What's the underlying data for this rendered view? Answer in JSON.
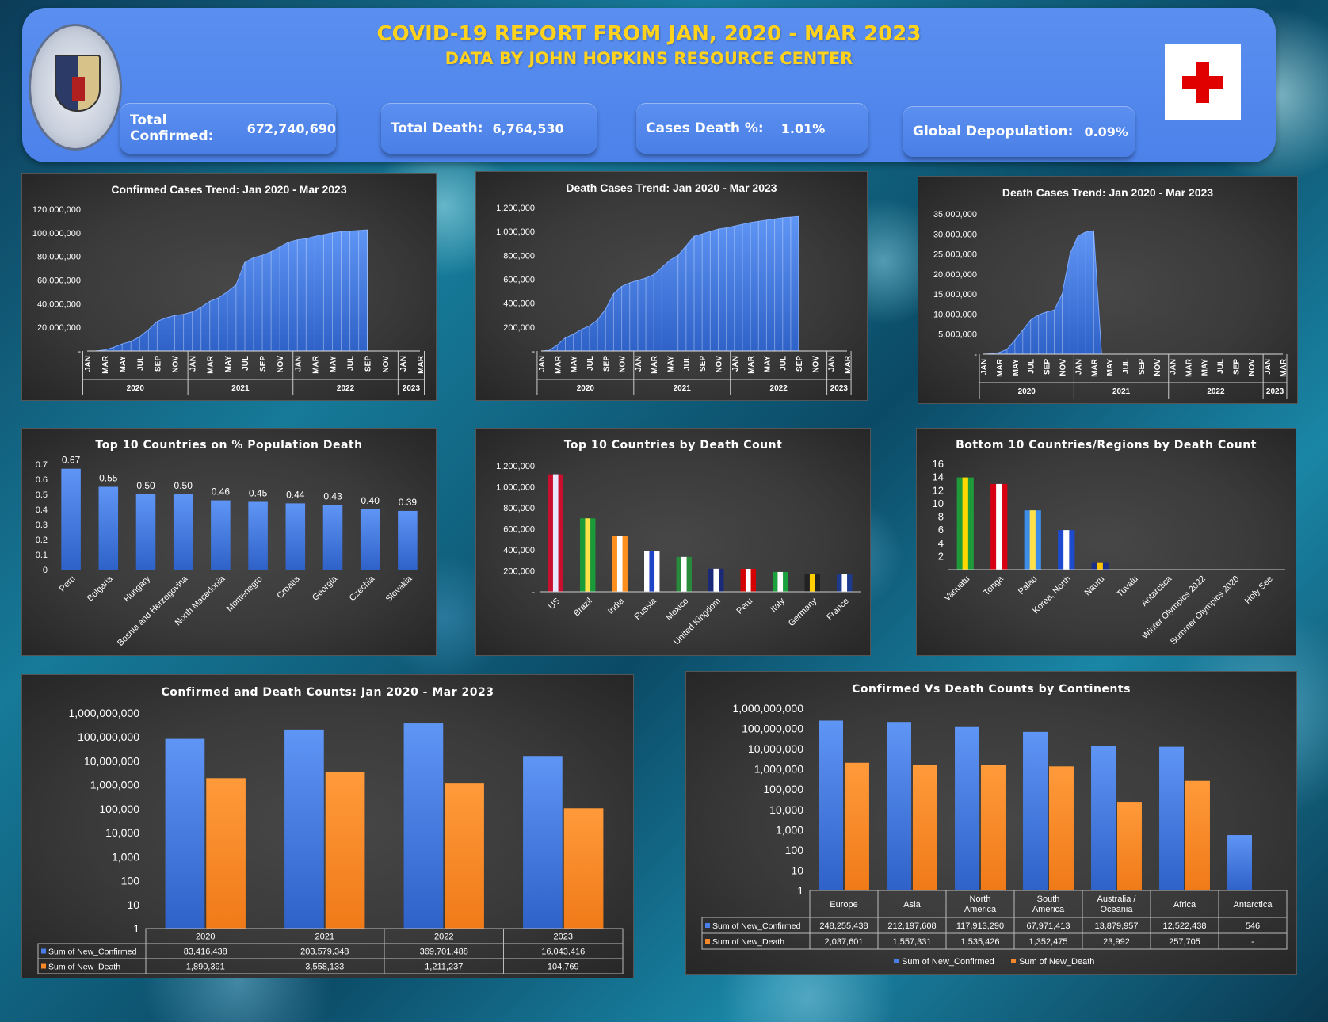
{
  "header": {
    "title": "COVID-19 REPORT FROM JAN, 2020 - MAR 2023",
    "subtitle": "DATA BY JOHN HOPKINS RESOURCE CENTER",
    "seal_text": "THE JOHNS HOPKINS UNIVERSITY BALTIMORE 1876"
  },
  "kpis": [
    {
      "label": "Total Confirmed:",
      "value": "672,740,690"
    },
    {
      "label": "Total Death:",
      "value": "6,764,530"
    },
    {
      "label": "Cases Death %:",
      "value": "1.01%"
    },
    {
      "label": "Global Depopulation:",
      "value": "0.09%"
    }
  ],
  "colors": {
    "blue": "#4a7ee8",
    "orange": "#f5892a",
    "header": "#5088ee",
    "gold": "#ffd21e"
  },
  "chart_data": [
    {
      "id": "confirmed_trend",
      "type": "area",
      "title": "Confirmed Cases Trend: Jan 2020 - Mar 2023",
      "ylim": [
        0,
        120000000
      ],
      "yticks": [
        "-",
        "20,000,000",
        "40,000,000",
        "60,000,000",
        "80,000,000",
        "100,000,000",
        "120,000,000"
      ],
      "month_labels": [
        "JAN",
        "MAR",
        "MAY",
        "JUL",
        "SEP",
        "NOV",
        "JAN",
        "MAR",
        "MAY",
        "JUL",
        "SEP",
        "NOV",
        "JAN",
        "MAR",
        "MAY",
        "JUL",
        "SEP",
        "NOV",
        "JAN",
        "MAR"
      ],
      "years": [
        "2020",
        "2021",
        "2022",
        "2023"
      ],
      "values": [
        0,
        100000,
        800000,
        3000000,
        6000000,
        8000000,
        12000000,
        18000000,
        25000000,
        28000000,
        30000000,
        31000000,
        33000000,
        37000000,
        42000000,
        45000000,
        50000000,
        56000000,
        75000000,
        79000000,
        81000000,
        84000000,
        88000000,
        92000000,
        94000000,
        95000000,
        97000000,
        98500000,
        100000000,
        101000000,
        101500000,
        102000000,
        102500000
      ]
    },
    {
      "id": "death_trend",
      "type": "area",
      "title": "Death Cases Trend: Jan 2020 - Mar 2023",
      "ylim": [
        0,
        1200000
      ],
      "yticks": [
        "-",
        "200,000",
        "400,000",
        "600,000",
        "800,000",
        "1,000,000",
        "1,200,000"
      ],
      "month_labels": [
        "JAN",
        "MAR",
        "MAY",
        "JUL",
        "SEP",
        "NOV",
        "JAN",
        "MAR",
        "MAY",
        "JUL",
        "SEP",
        "NOV",
        "JAN",
        "MAR",
        "MAY",
        "JUL",
        "SEP",
        "NOV",
        "JAN",
        "MAR"
      ],
      "years": [
        "2020",
        "2021",
        "2022",
        "2023"
      ],
      "values": [
        0,
        5000,
        50000,
        110000,
        140000,
        180000,
        210000,
        260000,
        350000,
        480000,
        540000,
        570000,
        590000,
        610000,
        640000,
        700000,
        760000,
        800000,
        880000,
        960000,
        980000,
        1000000,
        1020000,
        1030000,
        1045000,
        1060000,
        1075000,
        1085000,
        1095000,
        1105000,
        1115000,
        1120000,
        1125000
      ]
    },
    {
      "id": "death_trend_2",
      "type": "area",
      "title": "Death Cases Trend: Jan 2020 - Mar 2023",
      "ylim": [
        0,
        35000000
      ],
      "yticks": [
        "-",
        "5,000,000",
        "10,000,000",
        "15,000,000",
        "20,000,000",
        "25,000,000",
        "30,000,000",
        "35,000,000"
      ],
      "month_labels": [
        "JAN",
        "MAR",
        "MAY",
        "JUL",
        "SEP",
        "NOV",
        "JAN",
        "MAR",
        "MAY",
        "JUL",
        "SEP",
        "NOV",
        "JAN",
        "MAR",
        "MAY",
        "JUL",
        "SEP",
        "NOV",
        "JAN",
        "MAR"
      ],
      "years": [
        "2020",
        "2021",
        "2022",
        "2023"
      ],
      "values": [
        0,
        100000,
        400000,
        1200000,
        3500000,
        6000000,
        8500000,
        9800000,
        10500000,
        11000000,
        15000000,
        25000000,
        29500000,
        30500000,
        30800000,
        0
      ]
    },
    {
      "id": "pct_population_death",
      "type": "bar",
      "title": "Top 10 Countries on % Population Death",
      "ylim": [
        0,
        0.7
      ],
      "yticks": [
        "0",
        "0.1",
        "0.2",
        "0.3",
        "0.4",
        "0.5",
        "0.6",
        "0.7"
      ],
      "categories": [
        "Peru",
        "Bulgaria",
        "Hungary",
        "Bosnia and Herzegovina",
        "North Macedonia",
        "Montenegro",
        "Croatia",
        "Georgia",
        "Czechia",
        "Slovakia"
      ],
      "values": [
        0.67,
        0.55,
        0.5,
        0.5,
        0.46,
        0.45,
        0.44,
        0.43,
        0.4,
        0.39
      ],
      "labels": [
        "0.67",
        "0.55",
        "0.50",
        "0.50",
        "0.46",
        "0.45",
        "0.44",
        "0.43",
        "0.40",
        "0.39"
      ]
    },
    {
      "id": "top10_death",
      "type": "bar",
      "title": "Top 10 Countries by Death Count",
      "ylim": [
        0,
        1200000
      ],
      "yticks": [
        "-",
        "200,000",
        "400,000",
        "600,000",
        "800,000",
        "1,000,000",
        "1,200,000"
      ],
      "categories": [
        "US",
        "Brazil",
        "India",
        "Russia",
        "Mexico",
        "United Kingdom",
        "Peru",
        "Italy",
        "Germany",
        "France"
      ],
      "values": [
        1120000,
        700000,
        531000,
        388000,
        333000,
        220000,
        219000,
        189000,
        168000,
        166000
      ]
    },
    {
      "id": "bottom10_death",
      "type": "bar",
      "title": "Bottom 10 Countries/Regions by Death Count",
      "ylim": [
        0,
        16
      ],
      "yticks": [
        "-",
        "2",
        "4",
        "6",
        "8",
        "10",
        "12",
        "14",
        "16"
      ],
      "categories": [
        "Vanuatu",
        "Tonga",
        "Palau",
        "Korea, North",
        "Nauru",
        "Tuvalu",
        "Antarctica",
        "Winter Olympics 2022",
        "Summer Olympics 2020",
        "Holy See"
      ],
      "values": [
        14,
        13,
        9,
        6,
        1,
        0,
        0,
        0,
        0,
        0
      ]
    },
    {
      "id": "yearly_counts",
      "type": "bar",
      "title": "Confirmed and Death Counts: Jan 2020 - Mar 2023",
      "log_scale": true,
      "yticks": [
        "1",
        "10",
        "100",
        "1,000",
        "10,000",
        "100,000",
        "1,000,000",
        "10,000,000",
        "100,000,000",
        "1,000,000,000"
      ],
      "categories": [
        "2020",
        "2021",
        "2022",
        "2023"
      ],
      "series": [
        {
          "name": "Sum of New_Confirmed",
          "values": [
            83416438,
            203579348,
            369701488,
            16043416
          ],
          "labels": [
            "83,416,438",
            "203,579,348",
            "369,701,488",
            "16,043,416"
          ]
        },
        {
          "name": "Sum of New_Death",
          "values": [
            1890391,
            3558133,
            1211237,
            104769
          ],
          "labels": [
            "1,890,391",
            "3,558,133",
            "1,211,237",
            "104,769"
          ]
        }
      ]
    },
    {
      "id": "continent_counts",
      "type": "bar",
      "title": "Confirmed Vs Death Counts by Continents",
      "log_scale": true,
      "yticks": [
        "1",
        "10",
        "100",
        "1,000",
        "10,000",
        "100,000",
        "1,000,000",
        "10,000,000",
        "100,000,000",
        "1,000,000,000"
      ],
      "categories": [
        "Europe",
        "Asia",
        "North America",
        "South America",
        "Australia / Oceania",
        "Africa",
        "Antarctica"
      ],
      "series": [
        {
          "name": "Sum of New_Confirmed",
          "values": [
            248255438,
            212197608,
            117913290,
            67971413,
            13879957,
            12522438,
            546
          ],
          "labels": [
            "248,255,438",
            "212,197,608",
            "117,913,290",
            "67,971,413",
            "13,879,957",
            "12,522,438",
            "546"
          ]
        },
        {
          "name": "Sum of New_Death",
          "values": [
            2037601,
            1557331,
            1535426,
            1352475,
            23992,
            257705,
            0
          ],
          "labels": [
            "2,037,601",
            "1,557,331",
            "1,535,426",
            "1,352,475",
            "23,992",
            "257,705",
            "-"
          ]
        }
      ]
    }
  ]
}
